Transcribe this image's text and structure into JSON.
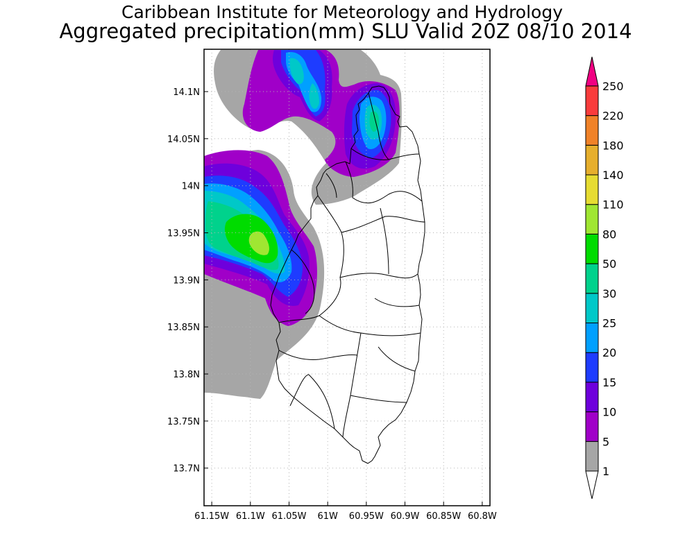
{
  "header": {
    "institute": "Caribbean Institute for Meteorology and Hydrology",
    "product": "Aggregated precipitation(mm) SLU Valid 20Z 08/10 2014"
  },
  "map": {
    "lon_range": [
      -61.16,
      -60.79
    ],
    "lat_range": [
      13.66,
      14.145
    ],
    "lon_ticks": [
      {
        "value": -61.15,
        "label": "61.15W"
      },
      {
        "value": -61.1,
        "label": "61.1W"
      },
      {
        "value": -61.05,
        "label": "61.05W"
      },
      {
        "value": -61.0,
        "label": "61W"
      },
      {
        "value": -60.95,
        "label": "60.95W"
      },
      {
        "value": -60.9,
        "label": "60.9W"
      },
      {
        "value": -60.85,
        "label": "60.85W"
      },
      {
        "value": -60.8,
        "label": "60.8W"
      }
    ],
    "lat_ticks": [
      {
        "value": 14.1,
        "label": "14.1N"
      },
      {
        "value": 14.05,
        "label": "14.05N"
      },
      {
        "value": 14.0,
        "label": "14N"
      },
      {
        "value": 13.95,
        "label": "13.95N"
      },
      {
        "value": 13.9,
        "label": "13.9N"
      },
      {
        "value": 13.85,
        "label": "13.85N"
      },
      {
        "value": 13.8,
        "label": "13.8N"
      },
      {
        "value": 13.75,
        "label": "13.75N"
      },
      {
        "value": 13.7,
        "label": "13.7N"
      }
    ],
    "grid": true
  },
  "colorbar": {
    "levels": [
      {
        "label": "1",
        "color": "#a6a6a6"
      },
      {
        "label": "5",
        "color": "#a000c8"
      },
      {
        "label": "10",
        "color": "#6e00dc"
      },
      {
        "label": "15",
        "color": "#1e3cff"
      },
      {
        "label": "20",
        "color": "#00a0ff"
      },
      {
        "label": "25",
        "color": "#00c8c8"
      },
      {
        "label": "30",
        "color": "#00d28c"
      },
      {
        "label": "50",
        "color": "#00dc00"
      },
      {
        "label": "80",
        "color": "#a0e632"
      },
      {
        "label": "110",
        "color": "#e6dc32"
      },
      {
        "label": "140",
        "color": "#e6af2d"
      },
      {
        "label": "180",
        "color": "#f08228"
      },
      {
        "label": "220",
        "color": "#fa3c3c"
      },
      {
        "label": "250",
        "color": "#f00082"
      }
    ]
  },
  "chart_data": {
    "type": "heatmap",
    "variable": "Aggregated precipitation",
    "units": "mm",
    "region": "SLU",
    "valid": "20Z 08/10 2014",
    "levels_mm": [
      1,
      5,
      10,
      15,
      20,
      25,
      30,
      50,
      80,
      110,
      140,
      180,
      220,
      250
    ],
    "rain_cells": [
      {
        "lon": -61.09,
        "lat": 13.945,
        "peak_mm": 80
      },
      {
        "lon": -61.04,
        "lat": 14.11,
        "peak_mm": 20
      },
      {
        "lon": -60.945,
        "lat": 14.07,
        "peak_mm": 30
      }
    ]
  }
}
